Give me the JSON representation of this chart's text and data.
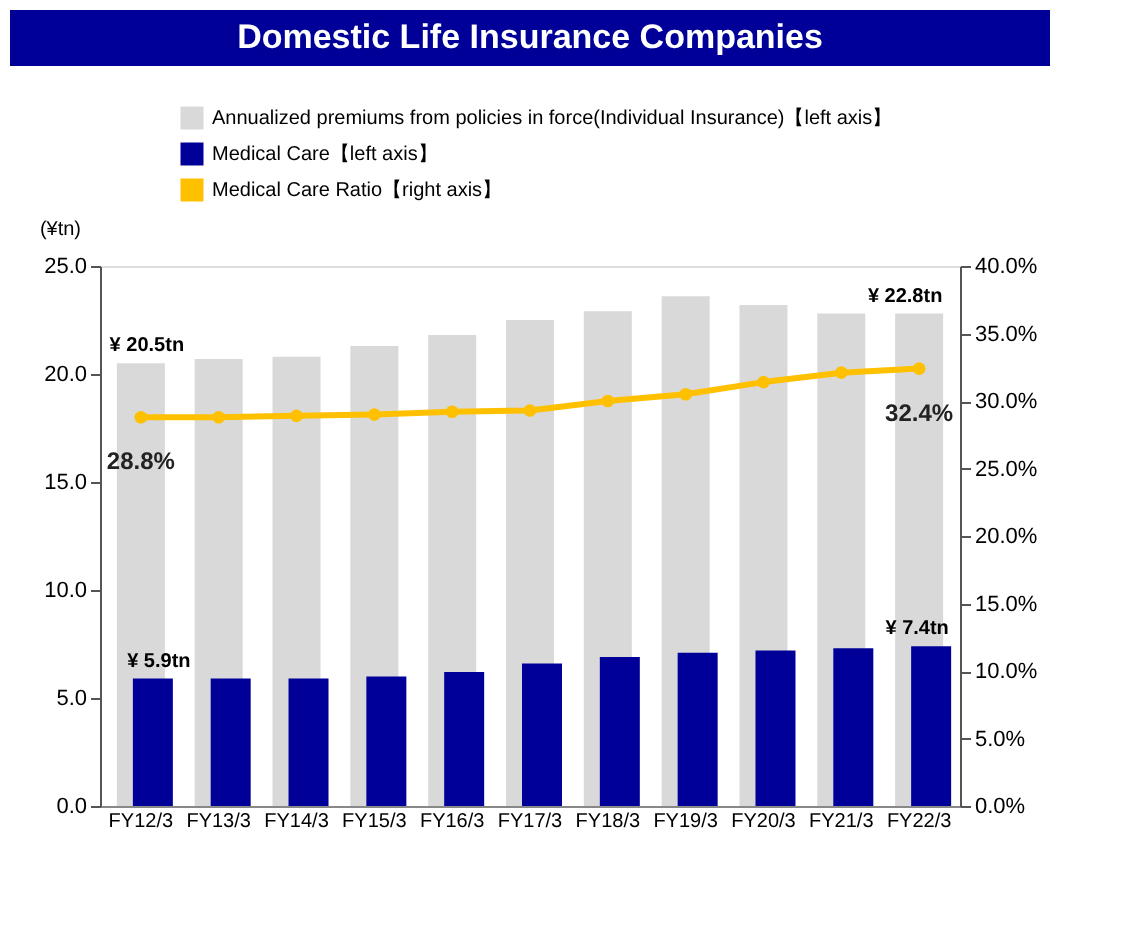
{
  "chart_data": {
    "type": "bar",
    "title": "Domestic Life Insurance Companies",
    "ylabel": "(¥tn)",
    "categories": [
      "FY12/3",
      "FY13/3",
      "FY14/3",
      "FY15/3",
      "FY16/3",
      "FY17/3",
      "FY18/3",
      "FY19/3",
      "FY20/3",
      "FY21/3",
      "FY22/3"
    ],
    "series": [
      {
        "name": "Annualized premiums  from policies in  force(Individual Insurance)【left axis】",
        "color": "#d9d9d9",
        "values": [
          20.5,
          20.7,
          20.8,
          21.3,
          21.8,
          22.5,
          22.9,
          23.6,
          23.2,
          22.8,
          22.8
        ],
        "value_labels": [
          "¥ 20.5tn",
          null,
          null,
          null,
          null,
          null,
          null,
          null,
          null,
          null,
          "¥ 22.8tn"
        ]
      },
      {
        "name": "Medical Care【left axis】",
        "color": "#000099",
        "values": [
          5.9,
          5.9,
          5.9,
          6.0,
          6.2,
          6.6,
          6.9,
          7.1,
          7.2,
          7.3,
          7.4
        ],
        "value_labels": [
          "¥ 5.9tn",
          null,
          null,
          null,
          null,
          null,
          null,
          null,
          null,
          null,
          "¥ 7.4tn"
        ]
      },
      {
        "name": "Medical Care Ratio【right axis】",
        "type": "line",
        "axis": "y2",
        "color": "#ffc000",
        "marker": "circle",
        "values": [
          28.8,
          28.8,
          28.9,
          29.0,
          29.2,
          29.3,
          30.0,
          30.5,
          31.4,
          32.1,
          32.4
        ],
        "value_labels": [
          "28.8%",
          null,
          null,
          null,
          null,
          null,
          null,
          null,
          null,
          null,
          "32.4%"
        ]
      }
    ],
    "ylim": [
      0,
      25
    ],
    "yticks": [
      {
        "value": 0,
        "label": "0.0"
      },
      {
        "value": 5,
        "label": "5.0"
      },
      {
        "value": 10,
        "label": "10.0"
      },
      {
        "value": 15,
        "label": "15.0"
      },
      {
        "value": 20,
        "label": "20.0"
      },
      {
        "value": 25,
        "label": "25.0"
      }
    ],
    "y2lim": [
      0,
      40
    ],
    "y2ticks": [
      {
        "value": 0,
        "label": "0.0%"
      },
      {
        "value": 5,
        "label": "5.0%"
      },
      {
        "value": 10,
        "label": "10.0%"
      },
      {
        "value": 15,
        "label": "15.0%"
      },
      {
        "value": 20,
        "label": "20.0%"
      },
      {
        "value": 25,
        "label": "25.0%"
      },
      {
        "value": 30,
        "label": "30.0%"
      },
      {
        "value": 35,
        "label": "35.0%"
      },
      {
        "value": 40,
        "label": "40.0%"
      }
    ],
    "grid": false,
    "legend": "top left"
  }
}
